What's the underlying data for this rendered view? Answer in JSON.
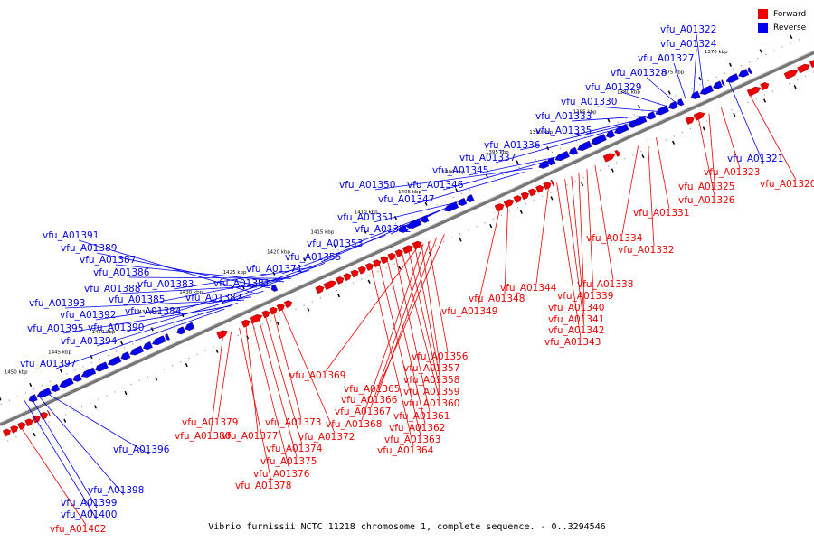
{
  "caption": "Vibrio furnissii NCTC 11218 chromosome 1, complete sequence. - 0..3294546",
  "legend": [
    {
      "label": "Forward",
      "color": "#ee0000"
    },
    {
      "label": "Reverse",
      "color": "#0000ee"
    }
  ],
  "colors": {
    "forward": "#ee0000",
    "reverse": "#0000ee",
    "axis": "#777777"
  },
  "scale_labels": [
    {
      "text": "1370 kbp",
      "kbp": 1370
    },
    {
      "text": "1375 kbp",
      "kbp": 1375
    },
    {
      "text": "1380 kbp",
      "kbp": 1380
    },
    {
      "text": "1385 kbp",
      "kbp": 1385
    },
    {
      "text": "1390 kbp",
      "kbp": 1390
    },
    {
      "text": "1395 kbp",
      "kbp": 1395
    },
    {
      "text": "1400 kbp",
      "kbp": 1400
    },
    {
      "text": "1405 kbp",
      "kbp": 1405
    },
    {
      "text": "1410 kbp",
      "kbp": 1410
    },
    {
      "text": "1415 kbp",
      "kbp": 1415
    },
    {
      "text": "1420 kbp",
      "kbp": 1420
    },
    {
      "text": "1425 kbp",
      "kbp": 1425
    },
    {
      "text": "1430 kbp",
      "kbp": 1430
    },
    {
      "text": "1435 kbp",
      "kbp": 1435
    },
    {
      "text": "1440 kbp",
      "kbp": 1440
    },
    {
      "text": "1445 kbp",
      "kbp": 1445
    },
    {
      "text": "1450 kbp",
      "kbp": 1450
    }
  ],
  "reverse_genes": [
    "vfu_A01322",
    "vfu_A01324",
    "vfu_A01327",
    "vfu_A01328",
    "vfu_A01329",
    "vfu_A01330",
    "vfu_A01333",
    "vfu_A01335",
    "vfu_A01336",
    "vfu_A01337",
    "vfu_A01345",
    "vfu_A01346",
    "vfu_A01350",
    "vfu_A01347",
    "vfu_A01351",
    "vfu_A01352",
    "vfu_A01353",
    "vfu_A01355",
    "vfu_A01371",
    "vfu_A01381",
    "vfu_A01382",
    "vfu_A01383",
    "vfu_A01384",
    "vfu_A01385",
    "vfu_A01386",
    "vfu_A01387",
    "vfu_A01388",
    "vfu_A01389",
    "vfu_A01390",
    "vfu_A01391",
    "vfu_A01392",
    "vfu_A01393",
    "vfu_A01394",
    "vfu_A01395",
    "vfu_A01397",
    "vfu_A01396",
    "vfu_A01398",
    "vfu_A01399",
    "vfu_A01400",
    "vfu_A01321"
  ],
  "forward_genes": [
    "vfu_A01320",
    "vfu_A01323",
    "vfu_A01325",
    "vfu_A01326",
    "vfu_A01331",
    "vfu_A01332",
    "vfu_A01334",
    "vfu_A01338",
    "vfu_A01339",
    "vfu_A01340",
    "vfu_A01341",
    "vfu_A01342",
    "vfu_A01343",
    "vfu_A01344",
    "vfu_A01348",
    "vfu_A01349",
    "vfu_A01356",
    "vfu_A01357",
    "vfu_A01358",
    "vfu_A01359",
    "vfu_A01360",
    "vfu_A01361",
    "vfu_A01362",
    "vfu_A01363",
    "vfu_A01364",
    "vfu_A01365",
    "vfu_A01366",
    "vfu_A01367",
    "vfu_A01368",
    "vfu_A01369",
    "vfu_A01372",
    "vfu_A01373",
    "vfu_A01374",
    "vfu_A01375",
    "vfu_A01376",
    "vfu_A01377",
    "vfu_A01378",
    "vfu_A01379",
    "vfu_A01380",
    "vfu_A01402"
  ]
}
